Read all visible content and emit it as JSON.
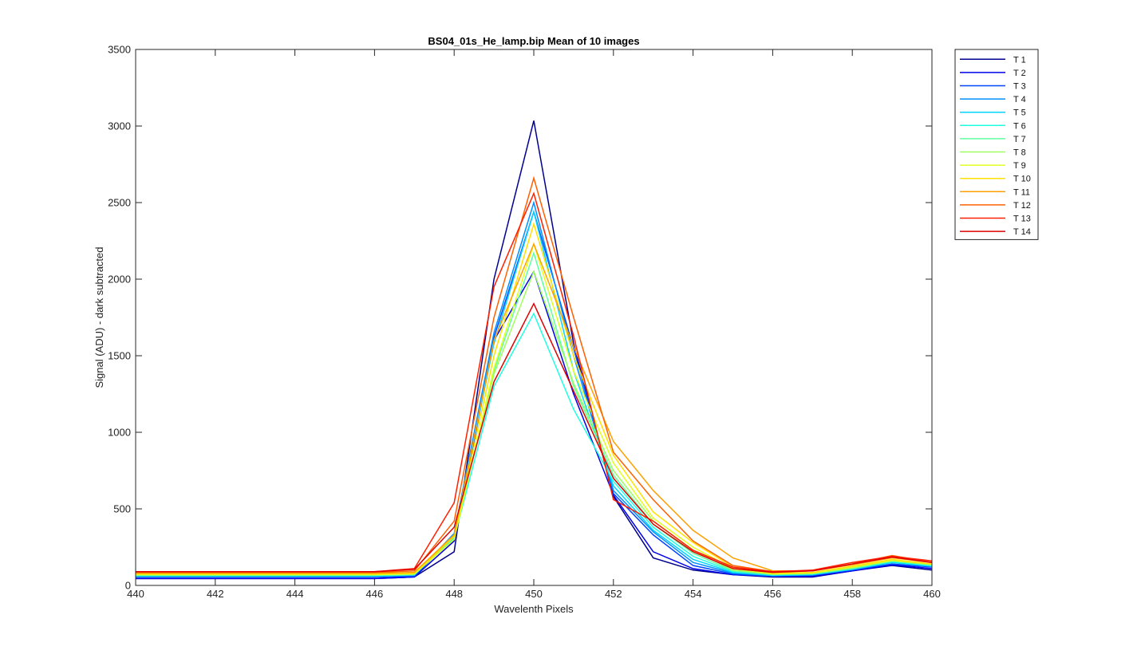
{
  "chart_data": {
    "type": "line",
    "title": "BS04_01s_He_lamp.bip  Mean of 10 images",
    "xlabel": "Wavelenth Pixels",
    "ylabel": "Signal (ADU) - dark subtracted",
    "xlim": [
      440,
      460
    ],
    "ylim": [
      0,
      3500
    ],
    "xticks": [
      440,
      442,
      444,
      446,
      448,
      450,
      452,
      454,
      456,
      458,
      460
    ],
    "yticks": [
      0,
      500,
      1000,
      1500,
      2000,
      2500,
      3000,
      3500
    ],
    "grid": false,
    "legend_position": "outside-top-right",
    "x": [
      440,
      441,
      442,
      443,
      444,
      445,
      446,
      447,
      448,
      449,
      450,
      451,
      452,
      453,
      454,
      455,
      456,
      457,
      458,
      459,
      460
    ],
    "series": [
      {
        "name": "T 1",
        "color": "#00008f",
        "values": [
          45,
          45,
          45,
          45,
          45,
          45,
          45,
          55,
          220,
          2000,
          3035,
          1580,
          580,
          180,
          100,
          70,
          55,
          55,
          95,
          130,
          100
        ]
      },
      {
        "name": "T 2",
        "color": "#0000ea",
        "values": [
          45,
          45,
          45,
          45,
          45,
          45,
          45,
          55,
          290,
          1600,
          2050,
          1250,
          590,
          220,
          110,
          70,
          60,
          60,
          95,
          135,
          110
        ]
      },
      {
        "name": "T 3",
        "color": "#0047ff",
        "values": [
          55,
          55,
          55,
          55,
          55,
          55,
          55,
          60,
          320,
          1620,
          2440,
          1550,
          600,
          330,
          130,
          75,
          60,
          65,
          100,
          140,
          120
        ]
      },
      {
        "name": "T 4",
        "color": "#0090ff",
        "values": [
          60,
          60,
          60,
          60,
          60,
          60,
          60,
          65,
          340,
          1650,
          2500,
          1500,
          620,
          350,
          150,
          80,
          65,
          70,
          105,
          150,
          125
        ]
      },
      {
        "name": "T 5",
        "color": "#00d4ff",
        "values": [
          60,
          60,
          60,
          60,
          60,
          60,
          60,
          70,
          330,
          1580,
          2440,
          1400,
          650,
          360,
          170,
          85,
          65,
          70,
          105,
          150,
          125
        ]
      },
      {
        "name": "T 6",
        "color": "#1fffe1",
        "values": [
          65,
          65,
          65,
          65,
          65,
          65,
          65,
          70,
          310,
          1300,
          1775,
          1150,
          680,
          380,
          190,
          90,
          70,
          75,
          110,
          155,
          130
        ]
      },
      {
        "name": "T 7",
        "color": "#60ffa0",
        "values": [
          65,
          65,
          65,
          65,
          65,
          65,
          65,
          70,
          320,
          1400,
          2170,
          1300,
          720,
          400,
          210,
          95,
          70,
          75,
          110,
          160,
          135
        ]
      },
      {
        "name": "T 8",
        "color": "#9fff60",
        "values": [
          70,
          70,
          70,
          70,
          70,
          70,
          70,
          75,
          330,
          1380,
          2050,
          1320,
          750,
          420,
          230,
          100,
          75,
          80,
          115,
          160,
          135
        ]
      },
      {
        "name": "T 9",
        "color": "#e1ff1f",
        "values": [
          70,
          70,
          70,
          70,
          70,
          70,
          70,
          75,
          300,
          1420,
          2230,
          1400,
          800,
          440,
          250,
          110,
          75,
          80,
          120,
          165,
          140
        ]
      },
      {
        "name": "T 10",
        "color": "#ffe000",
        "values": [
          75,
          75,
          75,
          75,
          75,
          75,
          75,
          80,
          320,
          1500,
          2360,
          1500,
          850,
          480,
          280,
          120,
          80,
          85,
          125,
          170,
          140
        ]
      },
      {
        "name": "T 11",
        "color": "#ffa000",
        "values": [
          80,
          80,
          80,
          80,
          80,
          80,
          80,
          85,
          330,
          1600,
          2230,
          1560,
          940,
          620,
          360,
          180,
          95,
          95,
          135,
          180,
          150
        ]
      },
      {
        "name": "T 12",
        "color": "#ff6000",
        "values": [
          85,
          85,
          85,
          85,
          85,
          85,
          85,
          95,
          420,
          1750,
          2660,
          1750,
          870,
          560,
          290,
          130,
          90,
          95,
          140,
          195,
          150
        ]
      },
      {
        "name": "T 13",
        "color": "#ff2000",
        "values": [
          90,
          90,
          90,
          90,
          90,
          90,
          90,
          110,
          540,
          1950,
          2560,
          1630,
          560,
          420,
          230,
          120,
          90,
          100,
          150,
          190,
          160
        ]
      },
      {
        "name": "T 14",
        "color": "#df0000",
        "values": [
          90,
          90,
          90,
          90,
          90,
          90,
          90,
          105,
          380,
          1330,
          1840,
          1270,
          700,
          400,
          220,
          110,
          85,
          95,
          140,
          185,
          150
        ]
      }
    ]
  }
}
